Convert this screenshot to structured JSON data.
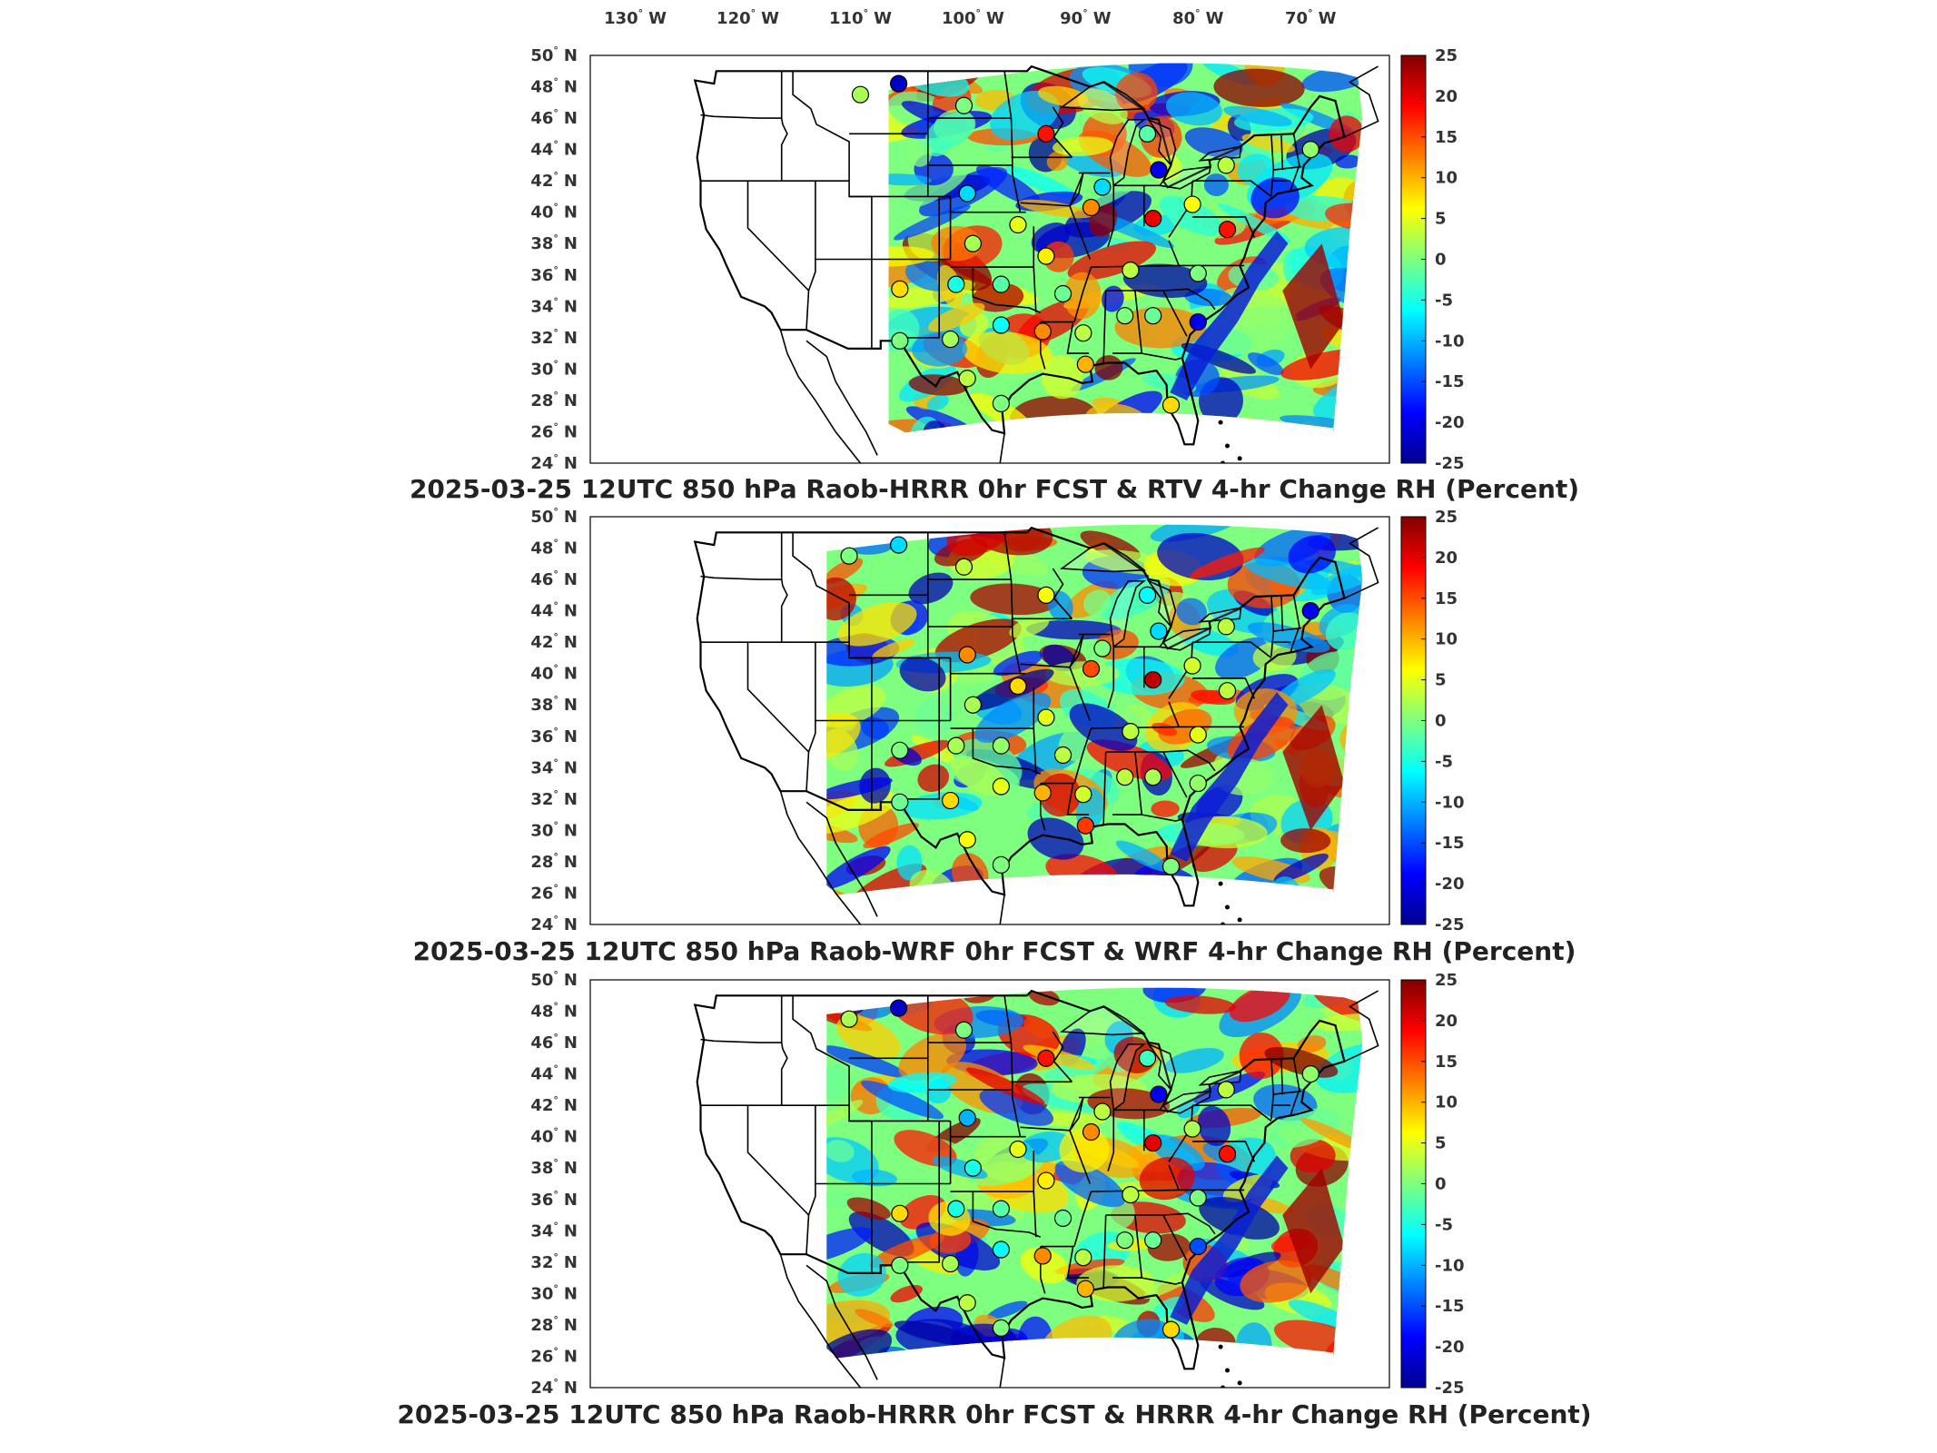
{
  "lon_labels": [
    {
      "text": "130",
      "suffix": "W",
      "lon": -130
    },
    {
      "text": "120",
      "suffix": "W",
      "lon": -120
    },
    {
      "text": "110",
      "suffix": "W",
      "lon": -110
    },
    {
      "text": "100",
      "suffix": "W",
      "lon": -100
    },
    {
      "text": "90",
      "suffix": "W",
      "lon": -90
    },
    {
      "text": "80",
      "suffix": "W",
      "lon": -80
    },
    {
      "text": "70",
      "suffix": "W",
      "lon": -70
    }
  ],
  "lat_labels": [
    {
      "text": "50",
      "suffix": "N",
      "lat": 50
    },
    {
      "text": "48",
      "suffix": "N",
      "lat": 48
    },
    {
      "text": "46",
      "suffix": "N",
      "lat": 46
    },
    {
      "text": "44",
      "suffix": "N",
      "lat": 44
    },
    {
      "text": "42",
      "suffix": "N",
      "lat": 42
    },
    {
      "text": "40",
      "suffix": "N",
      "lat": 40
    },
    {
      "text": "38",
      "suffix": "N",
      "lat": 38
    },
    {
      "text": "36",
      "suffix": "N",
      "lat": 36
    },
    {
      "text": "34",
      "suffix": "N",
      "lat": 34
    },
    {
      "text": "32",
      "suffix": "N",
      "lat": 32
    },
    {
      "text": "30",
      "suffix": "N",
      "lat": 30
    },
    {
      "text": "28",
      "suffix": "N",
      "lat": 28
    },
    {
      "text": "26",
      "suffix": "N",
      "lat": 26
    },
    {
      "text": "24",
      "suffix": "N",
      "lat": 24
    }
  ],
  "colorbar": {
    "min": -25,
    "max": 25,
    "ticks": [
      "25",
      "20",
      "15",
      "10",
      "5",
      "0",
      "-5",
      "-10",
      "-15",
      "-20",
      "-25"
    ],
    "colormap": "jet"
  },
  "panels": [
    {
      "title": "2025-03-25 12UTC 850 hPa Raob-HRRR 0hr FCST & RTV 4-hr Change RH (Percent)",
      "field_west_lon": -107.5,
      "stations": [
        {
          "lon": -110.0,
          "lat": 47.5,
          "v": 2
        },
        {
          "lon": -106.6,
          "lat": 48.2,
          "v": -22
        },
        {
          "lon": -100.8,
          "lat": 46.8,
          "v": 0
        },
        {
          "lon": -93.5,
          "lat": 45.0,
          "v": 18
        },
        {
          "lon": -84.5,
          "lat": 45.0,
          "v": -2
        },
        {
          "lon": -83.5,
          "lat": 42.7,
          "v": -20
        },
        {
          "lon": -88.5,
          "lat": 41.6,
          "v": -8
        },
        {
          "lon": -89.5,
          "lat": 40.3,
          "v": 12
        },
        {
          "lon": -84.0,
          "lat": 39.6,
          "v": 20
        },
        {
          "lon": -80.5,
          "lat": 40.5,
          "v": 6
        },
        {
          "lon": -77.5,
          "lat": 43.0,
          "v": 3
        },
        {
          "lon": -70.0,
          "lat": 44.0,
          "v": 1
        },
        {
          "lon": -100.5,
          "lat": 41.2,
          "v": -8
        },
        {
          "lon": -100.0,
          "lat": 38.0,
          "v": 2
        },
        {
          "lon": -96.0,
          "lat": 39.2,
          "v": 5
        },
        {
          "lon": -93.5,
          "lat": 37.2,
          "v": 7
        },
        {
          "lon": -106.5,
          "lat": 35.1,
          "v": 8
        },
        {
          "lon": -101.5,
          "lat": 35.4,
          "v": -5
        },
        {
          "lon": -97.5,
          "lat": 35.4,
          "v": -2
        },
        {
          "lon": -92.0,
          "lat": 34.8,
          "v": -1
        },
        {
          "lon": -86.0,
          "lat": 36.3,
          "v": 3
        },
        {
          "lon": -80.0,
          "lat": 36.1,
          "v": 0
        },
        {
          "lon": -86.5,
          "lat": 33.4,
          "v": 0
        },
        {
          "lon": -84.0,
          "lat": 33.4,
          "v": -1
        },
        {
          "lon": -80.0,
          "lat": 33.0,
          "v": -20
        },
        {
          "lon": -97.5,
          "lat": 32.8,
          "v": -6
        },
        {
          "lon": -93.8,
          "lat": 32.4,
          "v": 12
        },
        {
          "lon": -90.2,
          "lat": 32.3,
          "v": 3
        },
        {
          "lon": -106.5,
          "lat": 31.8,
          "v": 0
        },
        {
          "lon": -102.0,
          "lat": 31.9,
          "v": 2
        },
        {
          "lon": -90.0,
          "lat": 30.3,
          "v": 10
        },
        {
          "lon": -100.5,
          "lat": 29.4,
          "v": 3
        },
        {
          "lon": -97.5,
          "lat": 27.8,
          "v": 0
        },
        {
          "lon": -82.4,
          "lat": 27.7,
          "v": 8
        },
        {
          "lon": -77.4,
          "lat": 38.9,
          "v": 18
        }
      ]
    },
    {
      "title": "2025-03-25 12UTC 850 hPa Raob-WRF 0hr FCST & WRF 4-hr Change RH (Percent)",
      "field_west_lon": -113.0,
      "stations": [
        {
          "lon": -111.0,
          "lat": 47.5,
          "v": 0
        },
        {
          "lon": -106.6,
          "lat": 48.2,
          "v": -8
        },
        {
          "lon": -100.8,
          "lat": 46.8,
          "v": 3
        },
        {
          "lon": -93.5,
          "lat": 45.0,
          "v": 6
        },
        {
          "lon": -84.5,
          "lat": 45.0,
          "v": -6
        },
        {
          "lon": -83.5,
          "lat": 42.7,
          "v": -8
        },
        {
          "lon": -88.5,
          "lat": 41.6,
          "v": 0
        },
        {
          "lon": -89.5,
          "lat": 40.3,
          "v": 15
        },
        {
          "lon": -84.0,
          "lat": 39.6,
          "v": 22
        },
        {
          "lon": -80.5,
          "lat": 40.5,
          "v": 4
        },
        {
          "lon": -77.5,
          "lat": 43.0,
          "v": 3
        },
        {
          "lon": -70.0,
          "lat": 44.0,
          "v": -20
        },
        {
          "lon": -100.5,
          "lat": 41.2,
          "v": 12
        },
        {
          "lon": -100.0,
          "lat": 38.0,
          "v": 2
        },
        {
          "lon": -96.0,
          "lat": 39.2,
          "v": 8
        },
        {
          "lon": -93.5,
          "lat": 37.2,
          "v": 5
        },
        {
          "lon": -106.5,
          "lat": 35.1,
          "v": 0
        },
        {
          "lon": -101.5,
          "lat": 35.4,
          "v": 2
        },
        {
          "lon": -97.5,
          "lat": 35.4,
          "v": 1
        },
        {
          "lon": -92.0,
          "lat": 34.8,
          "v": 3
        },
        {
          "lon": -86.0,
          "lat": 36.3,
          "v": 3
        },
        {
          "lon": -80.0,
          "lat": 36.1,
          "v": 5
        },
        {
          "lon": -86.5,
          "lat": 33.4,
          "v": 3
        },
        {
          "lon": -84.0,
          "lat": 33.4,
          "v": 2
        },
        {
          "lon": -80.0,
          "lat": 33.0,
          "v": 1
        },
        {
          "lon": -97.5,
          "lat": 32.8,
          "v": 5
        },
        {
          "lon": -93.8,
          "lat": 32.4,
          "v": 10
        },
        {
          "lon": -90.2,
          "lat": 32.3,
          "v": 4
        },
        {
          "lon": -106.5,
          "lat": 31.8,
          "v": -1
        },
        {
          "lon": -102.0,
          "lat": 31.9,
          "v": 8
        },
        {
          "lon": -90.0,
          "lat": 30.3,
          "v": 16
        },
        {
          "lon": -100.5,
          "lat": 29.4,
          "v": 6
        },
        {
          "lon": -97.5,
          "lat": 27.8,
          "v": 0
        },
        {
          "lon": -82.4,
          "lat": 27.7,
          "v": 0
        },
        {
          "lon": -77.4,
          "lat": 38.9,
          "v": 3
        }
      ]
    },
    {
      "title": "2025-03-25 12UTC 850 hPa Raob-HRRR 0hr FCST & HRRR 4-hr Change RH (Percent)",
      "field_west_lon": -113.0,
      "stations": [
        {
          "lon": -111.0,
          "lat": 47.5,
          "v": 2
        },
        {
          "lon": -106.6,
          "lat": 48.2,
          "v": -22
        },
        {
          "lon": -100.8,
          "lat": 46.8,
          "v": 0
        },
        {
          "lon": -93.5,
          "lat": 45.0,
          "v": 18
        },
        {
          "lon": -84.5,
          "lat": 45.0,
          "v": -3
        },
        {
          "lon": -83.5,
          "lat": 42.7,
          "v": -20
        },
        {
          "lon": -88.5,
          "lat": 41.6,
          "v": 3
        },
        {
          "lon": -89.5,
          "lat": 40.3,
          "v": 12
        },
        {
          "lon": -84.0,
          "lat": 39.6,
          "v": 20
        },
        {
          "lon": -80.5,
          "lat": 40.5,
          "v": 2
        },
        {
          "lon": -77.5,
          "lat": 43.0,
          "v": 3
        },
        {
          "lon": -70.0,
          "lat": 44.0,
          "v": 1
        },
        {
          "lon": -100.5,
          "lat": 41.2,
          "v": -10
        },
        {
          "lon": -100.0,
          "lat": 38.0,
          "v": -5
        },
        {
          "lon": -96.0,
          "lat": 39.2,
          "v": 5
        },
        {
          "lon": -93.5,
          "lat": 37.2,
          "v": 7
        },
        {
          "lon": -106.5,
          "lat": 35.1,
          "v": 8
        },
        {
          "lon": -101.5,
          "lat": 35.4,
          "v": -5
        },
        {
          "lon": -97.5,
          "lat": 35.4,
          "v": -2
        },
        {
          "lon": -92.0,
          "lat": 34.8,
          "v": -1
        },
        {
          "lon": -86.0,
          "lat": 36.3,
          "v": 3
        },
        {
          "lon": -80.0,
          "lat": 36.1,
          "v": 0
        },
        {
          "lon": -86.5,
          "lat": 33.4,
          "v": 0
        },
        {
          "lon": -84.0,
          "lat": 33.4,
          "v": -1
        },
        {
          "lon": -80.0,
          "lat": 33.0,
          "v": -15
        },
        {
          "lon": -97.5,
          "lat": 32.8,
          "v": -6
        },
        {
          "lon": -93.8,
          "lat": 32.4,
          "v": 12
        },
        {
          "lon": -90.2,
          "lat": 32.3,
          "v": 3
        },
        {
          "lon": -106.5,
          "lat": 31.8,
          "v": 0
        },
        {
          "lon": -102.0,
          "lat": 31.9,
          "v": 2
        },
        {
          "lon": -90.0,
          "lat": 30.3,
          "v": 10
        },
        {
          "lon": -100.5,
          "lat": 29.4,
          "v": 3
        },
        {
          "lon": -97.5,
          "lat": 27.8,
          "v": 0
        },
        {
          "lon": -82.4,
          "lat": 27.7,
          "v": 8
        },
        {
          "lon": -77.4,
          "lat": 38.9,
          "v": 18
        }
      ]
    }
  ]
}
